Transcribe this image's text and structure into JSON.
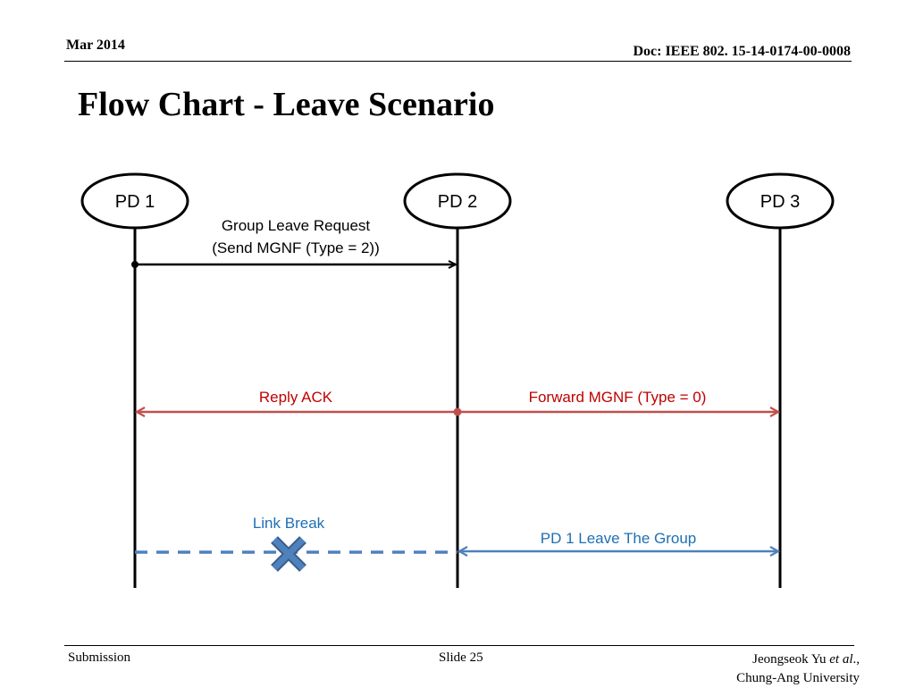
{
  "header": {
    "date": "Mar 2014",
    "doc": "Doc: IEEE 802. 15-14-0174-00-0008"
  },
  "title": "Flow Chart - Leave Scenario",
  "nodes": [
    {
      "id": "pd1",
      "label": "PD 1"
    },
    {
      "id": "pd2",
      "label": "PD 2"
    },
    {
      "id": "pd3",
      "label": "PD 3"
    }
  ],
  "messages": {
    "group_leave_line1": "Group Leave Request",
    "group_leave_line2": "(Send MGNF (Type = 2))",
    "reply_ack": "Reply ACK",
    "forward_mgnf": "Forward MGNF (Type = 0)",
    "link_break": "Link Break",
    "pd1_leave": "PD 1 Leave The Group"
  },
  "colors": {
    "black": "#000000",
    "red": "#c0504d",
    "red_text": "#c00000",
    "blue": "#4f81bd",
    "blue_text": "#1f6eb4",
    "cross_fill": "#4f81bd",
    "cross_stroke": "#385d8a"
  },
  "footer": {
    "left": "Submission",
    "slide": "Slide 25",
    "author": "Jeongseok Yu ",
    "author_etal": "et al",
    "author_suffix": ".,",
    "org": "Chung-Ang University"
  }
}
